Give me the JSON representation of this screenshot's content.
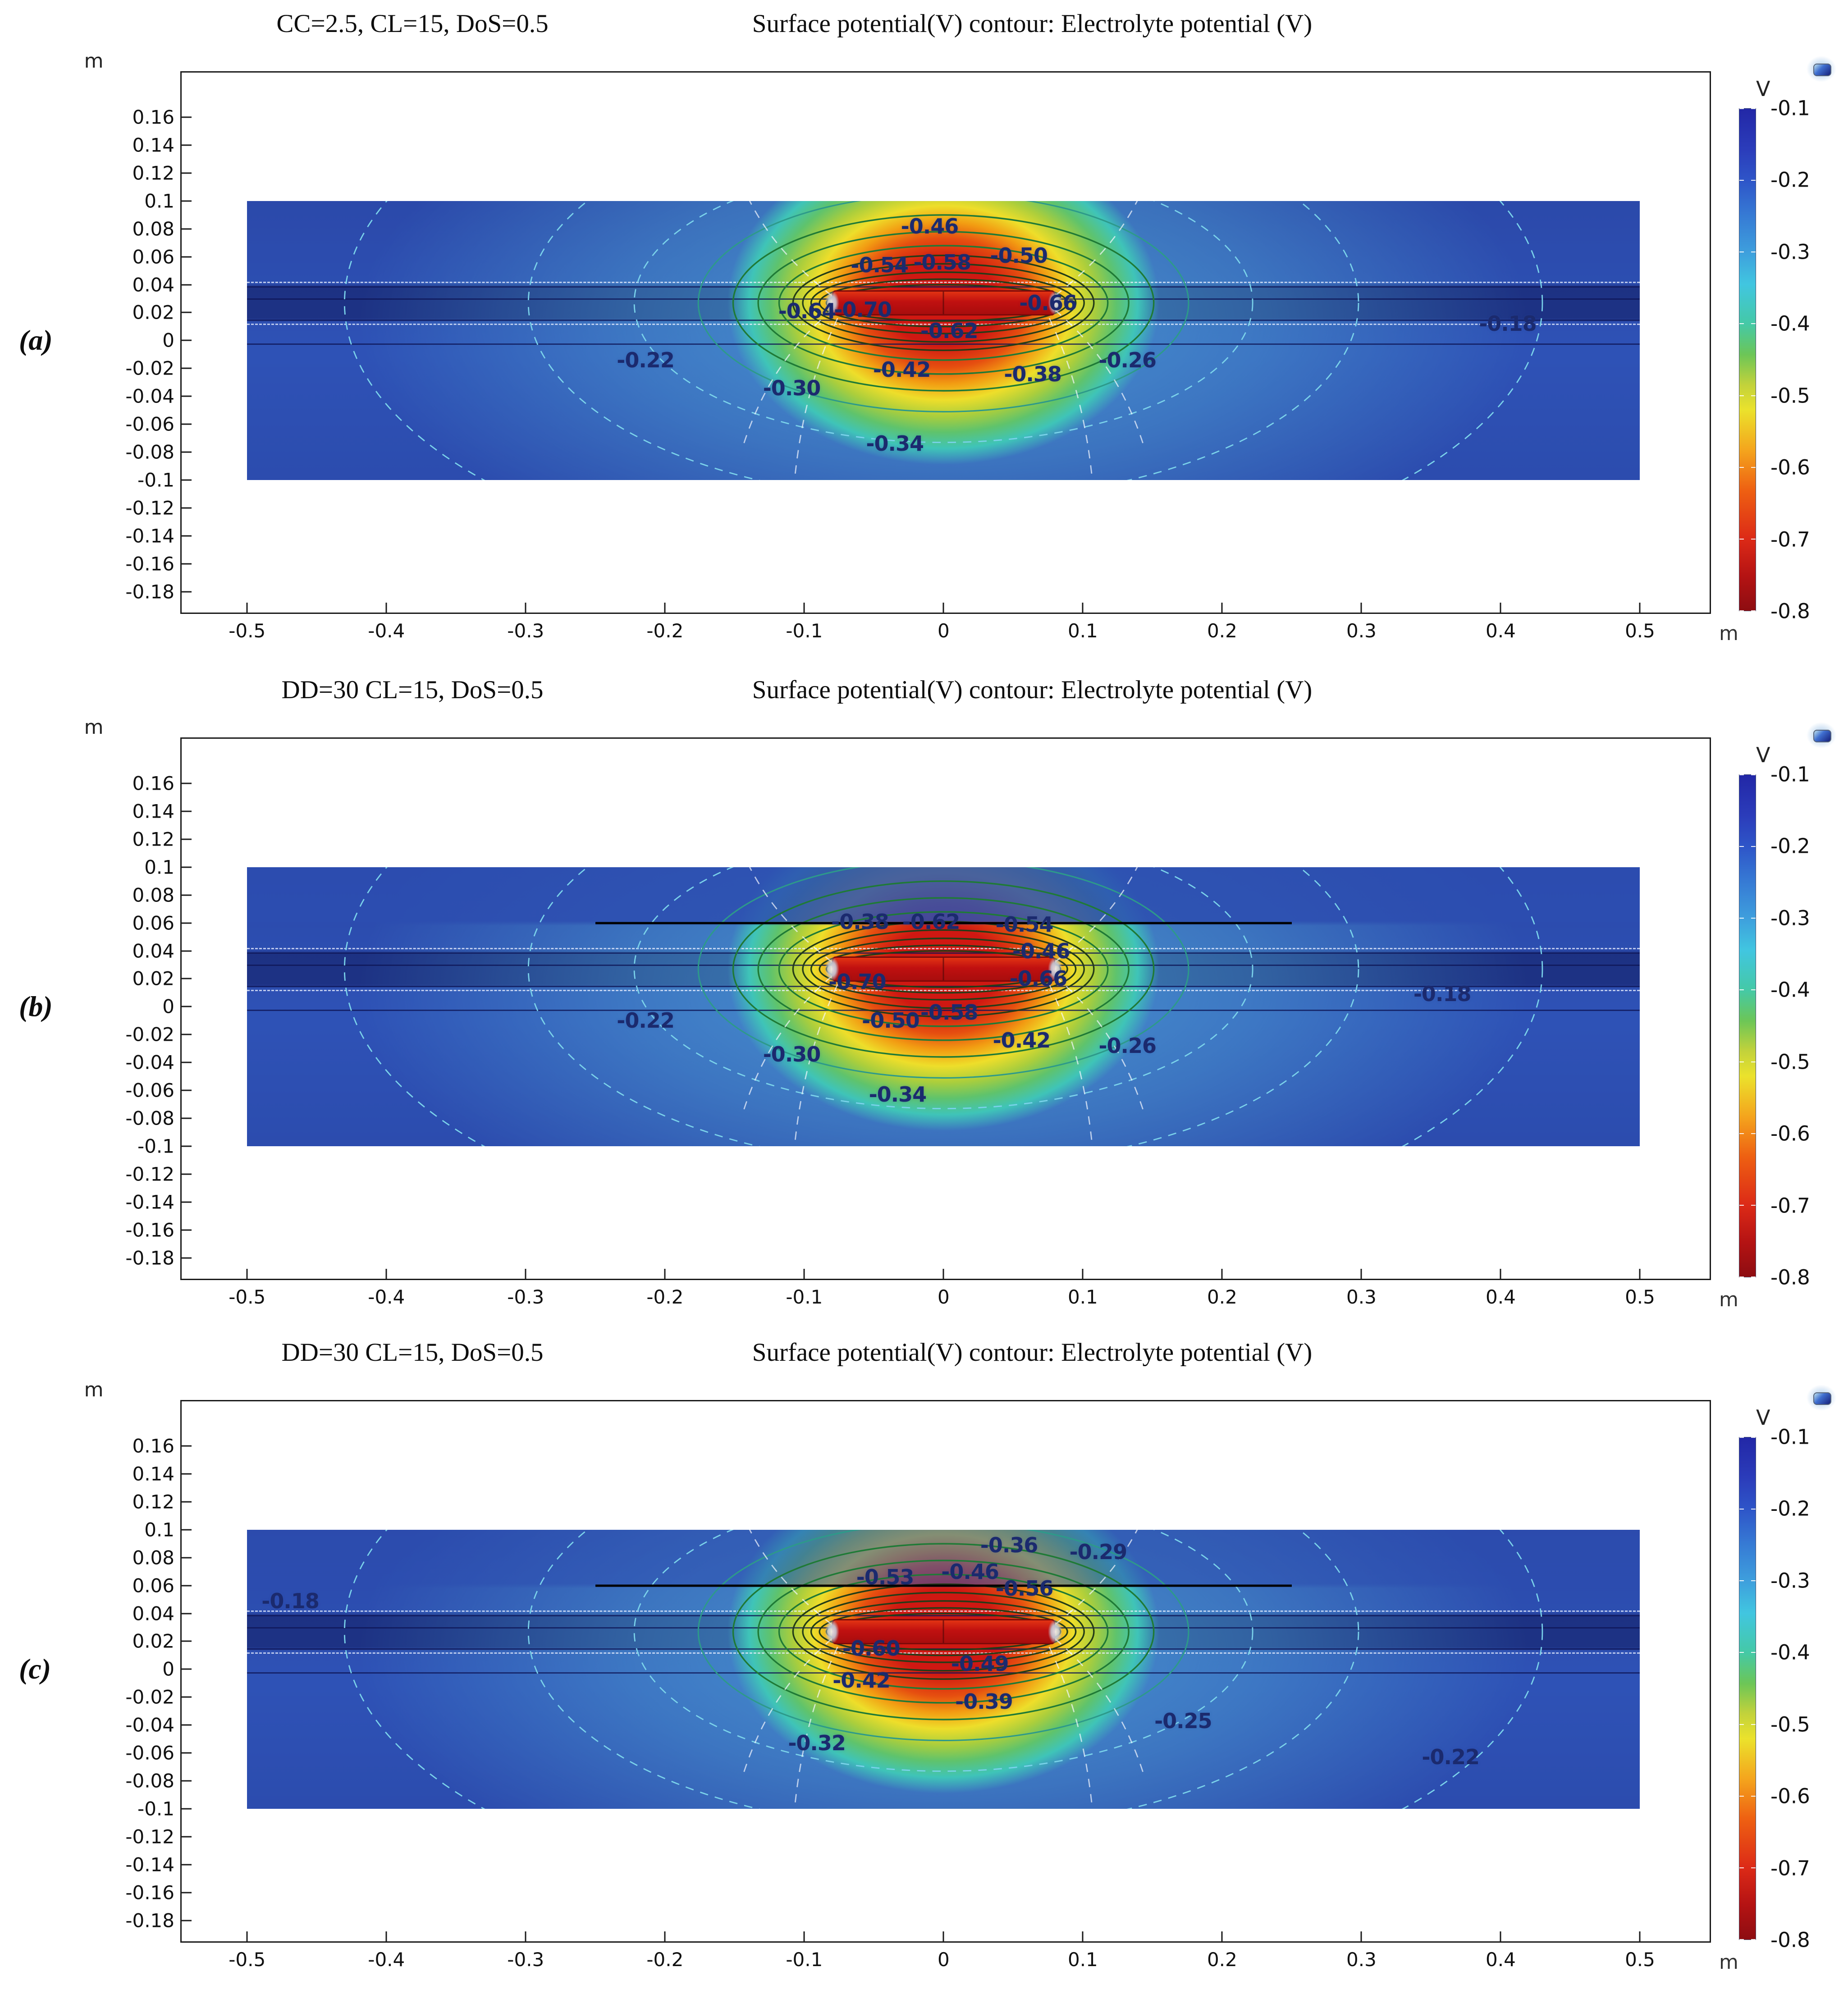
{
  "figure": {
    "background": "#ffffff",
    "description_units": "m",
    "colorbar_scale_colors": [
      "#2227a6",
      "#2e55c8",
      "#3e9fdd",
      "#41c6e0",
      "#45c9a6",
      "#6cc657",
      "#c2d23b",
      "#ebe22c",
      "#f4a51d",
      "#ee6012",
      "#dc2a17",
      "#8d0d11"
    ]
  },
  "chart_data": [
    {
      "type": "contour",
      "panel_id": "a",
      "panel": "(a)",
      "params_label": "CC=2.5, CL=15, DoS=0.5",
      "title": "Surface potential(V) contour: Electrolyte potential (V)",
      "axis_unit_x": "m",
      "axis_unit_y": "m",
      "xlim": [
        -0.547,
        0.55
      ],
      "ylim": [
        -0.195,
        0.192
      ],
      "x_ticks": [
        "-0.5",
        "-0.4",
        "-0.3",
        "-0.2",
        "-0.1",
        "0",
        "0.1",
        "0.2",
        "0.3",
        "0.4",
        "0.5"
      ],
      "y_ticks": [
        "0.16",
        "0.14",
        "0.12",
        "0.1",
        "0.08",
        "0.06",
        "0.04",
        "0.02",
        "0",
        "-0.02",
        "-0.04",
        "-0.06",
        "-0.08",
        "-0.1",
        "-0.12",
        "-0.14",
        "-0.16",
        "-0.18"
      ],
      "colorbar": {
        "unit": "V",
        "ticks": [
          "-0.1",
          "-0.2",
          "-0.3",
          "-0.4",
          "-0.5",
          "-0.6",
          "-0.7",
          "-0.8"
        ],
        "min": -0.8,
        "max": -0.1
      },
      "domain": {
        "x": [
          -0.5,
          0.5
        ],
        "y": [
          -0.1,
          0.1
        ]
      },
      "anode_bar": {
        "x": [
          -0.08,
          0.08
        ],
        "y": [
          0.018,
          0.036
        ]
      },
      "overlay_line": null,
      "pipe_lines": {
        "navy_y": [
          0.039,
          0.03,
          0.015,
          -0.002
        ],
        "dashed_y": [
          0.042,
          0.012
        ]
      },
      "contour_labels": [
        {
          "v": "-0.46",
          "x": -0.01,
          "y": 0.082
        },
        {
          "v": "-0.54",
          "x": -0.046,
          "y": 0.054
        },
        {
          "v": "-0.58",
          "x": -0.001,
          "y": 0.056
        },
        {
          "v": "-0.50",
          "x": 0.054,
          "y": 0.061
        },
        {
          "v": "-0.64",
          "x": -0.098,
          "y": 0.021
        },
        {
          "v": "-0.70",
          "x": -0.058,
          "y": 0.022
        },
        {
          "v": "-0.66",
          "x": 0.075,
          "y": 0.027
        },
        {
          "v": "-0.62",
          "x": 0.004,
          "y": 0.007
        },
        {
          "v": "-0.42",
          "x": -0.03,
          "y": -0.021
        },
        {
          "v": "-0.38",
          "x": 0.064,
          "y": -0.024
        },
        {
          "v": "-0.26",
          "x": 0.132,
          "y": -0.014
        },
        {
          "v": "-0.30",
          "x": -0.109,
          "y": -0.034
        },
        {
          "v": "-0.34",
          "x": -0.035,
          "y": -0.074
        },
        {
          "v": "-0.22",
          "x": -0.214,
          "y": -0.014
        },
        {
          "v": "-0.18",
          "x": 0.405,
          "y": 0.012
        }
      ]
    },
    {
      "type": "contour",
      "panel_id": "b",
      "panel": "(b)",
      "params_label": "DD=30 CL=15, DoS=0.5",
      "title": "Surface potential(V) contour: Electrolyte potential (V)",
      "axis_unit_x": "m",
      "axis_unit_y": "m",
      "xlim": [
        -0.547,
        0.55
      ],
      "ylim": [
        -0.195,
        0.192
      ],
      "x_ticks": [
        "-0.5",
        "-0.4",
        "-0.3",
        "-0.2",
        "-0.1",
        "0",
        "0.1",
        "0.2",
        "0.3",
        "0.4",
        "0.5"
      ],
      "y_ticks": [
        "0.16",
        "0.14",
        "0.12",
        "0.1",
        "0.08",
        "0.06",
        "0.04",
        "0.02",
        "0",
        "-0.02",
        "-0.04",
        "-0.06",
        "-0.08",
        "-0.1",
        "-0.12",
        "-0.14",
        "-0.16",
        "-0.18"
      ],
      "colorbar": {
        "unit": "V",
        "ticks": [
          "-0.1",
          "-0.2",
          "-0.3",
          "-0.4",
          "-0.5",
          "-0.6",
          "-0.7",
          "-0.8"
        ],
        "min": -0.8,
        "max": -0.1
      },
      "domain": {
        "x": [
          -0.5,
          0.5
        ],
        "y": [
          -0.1,
          0.1
        ]
      },
      "anode_bar": {
        "x": [
          -0.08,
          0.08
        ],
        "y": [
          0.018,
          0.036
        ]
      },
      "overlay_line": {
        "y": 0.06,
        "x": [
          -0.25,
          0.25
        ]
      },
      "pipe_lines": {
        "navy_y": [
          0.039,
          0.03,
          0.015,
          -0.002
        ],
        "dashed_y": [
          0.042,
          0.012
        ]
      },
      "contour_labels": [
        {
          "v": "-0.38",
          "x": -0.06,
          "y": 0.061
        },
        {
          "v": "-0.62",
          "x": -0.009,
          "y": 0.061
        },
        {
          "v": "-0.54",
          "x": 0.058,
          "y": 0.059
        },
        {
          "v": "-0.46",
          "x": 0.07,
          "y": 0.04
        },
        {
          "v": "-0.70",
          "x": -0.062,
          "y": 0.018
        },
        {
          "v": "-0.66",
          "x": 0.068,
          "y": 0.02
        },
        {
          "v": "-0.58",
          "x": 0.004,
          "y": -0.004
        },
        {
          "v": "-0.50",
          "x": -0.038,
          "y": -0.01
        },
        {
          "v": "-0.42",
          "x": 0.056,
          "y": -0.024
        },
        {
          "v": "-0.30",
          "x": -0.109,
          "y": -0.034
        },
        {
          "v": "-0.26",
          "x": 0.132,
          "y": -0.028
        },
        {
          "v": "-0.34",
          "x": -0.033,
          "y": -0.063
        },
        {
          "v": "-0.22",
          "x": -0.214,
          "y": -0.01
        },
        {
          "v": "-0.18",
          "x": 0.358,
          "y": 0.009
        }
      ]
    },
    {
      "type": "contour",
      "panel_id": "c",
      "panel": "(c)",
      "params_label": "DD=30 CL=15, DoS=0.5",
      "title": "Surface potential(V) contour: Electrolyte potential (V)",
      "axis_unit_x": "m",
      "axis_unit_y": "m",
      "xlim": [
        -0.547,
        0.55
      ],
      "ylim": [
        -0.195,
        0.192
      ],
      "x_ticks": [
        "-0.5",
        "-0.4",
        "-0.3",
        "-0.2",
        "-0.1",
        "0",
        "0.1",
        "0.2",
        "0.3",
        "0.4",
        "0.5"
      ],
      "y_ticks": [
        "0.16",
        "0.14",
        "0.12",
        "0.1",
        "0.08",
        "0.06",
        "0.04",
        "0.02",
        "0",
        "-0.02",
        "-0.04",
        "-0.06",
        "-0.08",
        "-0.1",
        "-0.12",
        "-0.14",
        "-0.16",
        "-0.18"
      ],
      "colorbar": {
        "unit": "V",
        "ticks": [
          "-0.1",
          "-0.2",
          "-0.3",
          "-0.4",
          "-0.5",
          "-0.6",
          "-0.7",
          "-0.8"
        ],
        "min": -0.8,
        "max": -0.1
      },
      "domain": {
        "x": [
          -0.5,
          0.5
        ],
        "y": [
          -0.1,
          0.1
        ]
      },
      "anode_bar": {
        "x": [
          -0.08,
          0.08
        ],
        "y": [
          0.018,
          0.036
        ]
      },
      "overlay_line": {
        "y": 0.06,
        "x": [
          -0.25,
          0.25
        ]
      },
      "pipe_lines": {
        "navy_y": [
          0.039,
          0.03,
          0.015,
          -0.002
        ],
        "dashed_y": [
          0.042,
          0.012
        ]
      },
      "contour_labels": [
        {
          "v": "-0.36",
          "x": 0.047,
          "y": 0.089
        },
        {
          "v": "-0.29",
          "x": 0.111,
          "y": 0.084
        },
        {
          "v": "-0.46",
          "x": 0.019,
          "y": 0.07
        },
        {
          "v": "-0.53",
          "x": -0.042,
          "y": 0.066
        },
        {
          "v": "-0.56",
          "x": 0.058,
          "y": 0.058
        },
        {
          "v": "-0.60",
          "x": -0.052,
          "y": 0.015
        },
        {
          "v": "-0.49",
          "x": 0.026,
          "y": 0.004
        },
        {
          "v": "-0.42",
          "x": -0.059,
          "y": -0.008
        },
        {
          "v": "-0.39",
          "x": 0.029,
          "y": -0.023
        },
        {
          "v": "-0.32",
          "x": -0.091,
          "y": -0.053
        },
        {
          "v": "-0.25",
          "x": 0.172,
          "y": -0.037
        },
        {
          "v": "-0.18",
          "x": -0.469,
          "y": 0.049
        },
        {
          "v": "-0.22",
          "x": 0.364,
          "y": -0.063
        }
      ]
    }
  ]
}
